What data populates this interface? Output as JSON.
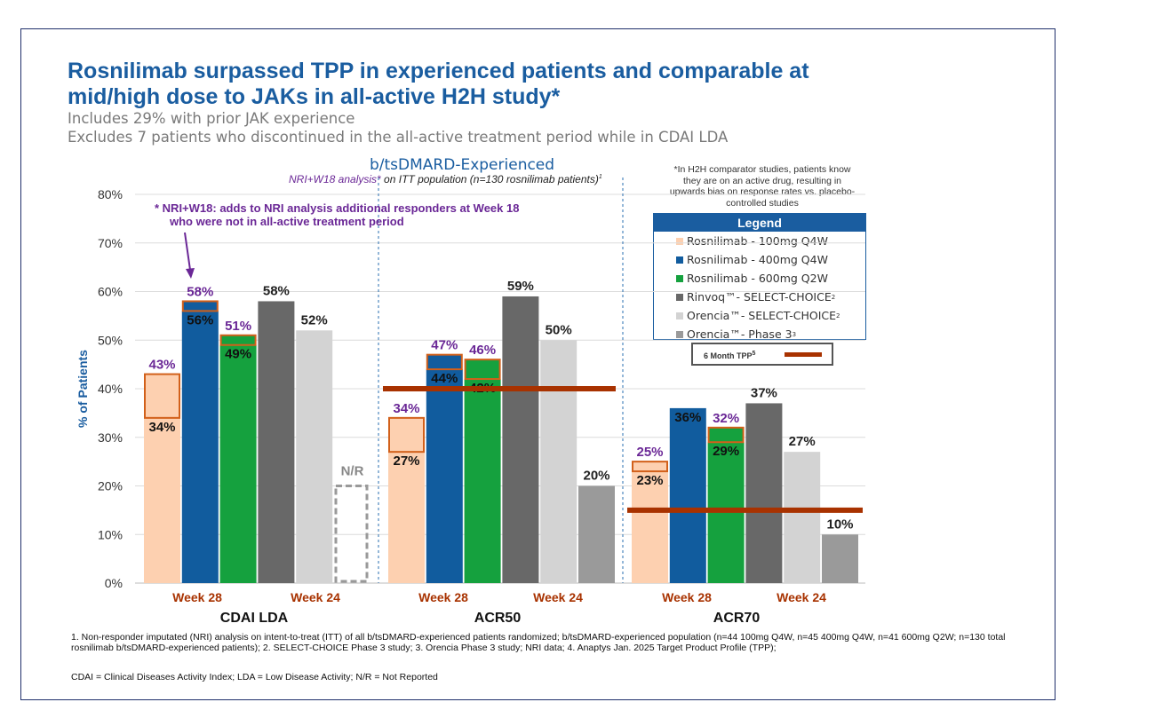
{
  "title": "Rosnilimab surpassed TPP in experienced patients and comparable at mid/high dose to JAKs in all-active H2H study*",
  "subtitle_1": "Includes 29% with prior JAK experience",
  "subtitle_2": "Excludes 7 patients who discontinued in the all-active treatment period while in CDAI LDA",
  "bias_note": "*In H2H comparator studies, patients know they are on an active drug, resulting in upwards bias on response rates vs. placebo-controlled studies",
  "legend": {
    "title": "Legend",
    "items": [
      {
        "label": "Rosnilimab - 100mg Q4W",
        "sup": "",
        "color": "#fdd0b0"
      },
      {
        "label": "Rosnilimab - 400mg Q4W",
        "sup": "",
        "color": "#115c9e"
      },
      {
        "label": "Rosnilimab - 600mg Q2W",
        "sup": "",
        "color": "#15a13e"
      },
      {
        "label": "Rinvoq™- SELECT-CHOICE",
        "sup": "2",
        "color": "#686868"
      },
      {
        "label": "Orencia™- SELECT-CHOICE",
        "sup": "2",
        "color": "#d3d3d3"
      },
      {
        "label": "Orencia™- Phase 3",
        "sup": "3",
        "color": "#9a9a9a"
      }
    ],
    "tpp_label": "6 Month TPP",
    "tpp_sup": "5"
  },
  "chart_data": {
    "type": "bar",
    "title": "b/tsDMARD-Experienced",
    "subtitle_prefix": "NRI+W18 analysis*",
    "subtitle_rest": " on ITT population (n=130 rosnilimab patients)",
    "subtitle_sup": "1",
    "ylabel": "% of Patients",
    "ylim": [
      0,
      80
    ],
    "yticks": [
      "0%",
      "10%",
      "20%",
      "30%",
      "40%",
      "50%",
      "60%",
      "70%",
      "80%"
    ],
    "grid": true,
    "annotation": {
      "line1": "*  NRI+W18: adds to NRI analysis additional responders at Week 18",
      "line2": "who were not in all-active treatment period"
    },
    "colors": {
      "r100": "#fdd0b0",
      "r400": "#115c9e",
      "r600": "#15a13e",
      "rinvoq": "#686868",
      "orencia_sc": "#d3d3d3",
      "orencia_p3": "#9a9a9a",
      "nri_outline": "#d2601a",
      "tpp": "#a83200",
      "purple": "#6a2796",
      "week": "#a83200"
    },
    "groups": [
      {
        "name": "CDAI LDA",
        "week_labels": [
          "Week 28",
          "Week 24"
        ],
        "tpp": 40,
        "rosnilimab": [
          {
            "dose": "100mg Q4W",
            "nri": 34,
            "nri_w18": 43,
            "nri_label": "34%",
            "w18_label": "43%"
          },
          {
            "dose": "400mg Q4W",
            "nri": 56,
            "nri_w18": 58,
            "nri_label": "56%",
            "w18_label": "58%"
          },
          {
            "dose": "600mg Q2W",
            "nri": 49,
            "nri_w18": 51,
            "nri_label": "49%",
            "w18_label": "51%"
          }
        ],
        "comparators": [
          {
            "name": "Rinvoq SELECT-CHOICE",
            "value": 58,
            "label": "58%"
          },
          {
            "name": "Orencia SELECT-CHOICE",
            "value": 52,
            "label": "52%"
          },
          {
            "name": "Orencia Phase 3",
            "value": null,
            "label": "N/R"
          }
        ]
      },
      {
        "name": "ACR50",
        "week_labels": [
          "Week 28",
          "Week 24"
        ],
        "tpp": 40,
        "rosnilimab": [
          {
            "dose": "100mg Q4W",
            "nri": 27,
            "nri_w18": 34,
            "nri_label": "27%",
            "w18_label": "34%"
          },
          {
            "dose": "400mg Q4W",
            "nri": 44,
            "nri_w18": 47,
            "nri_label": "44%",
            "w18_label": "47%"
          },
          {
            "dose": "600mg Q2W",
            "nri": 42,
            "nri_w18": 46,
            "nri_label": "42%",
            "w18_label": "46%"
          }
        ],
        "comparators": [
          {
            "name": "Rinvoq SELECT-CHOICE",
            "value": 59,
            "label": "59%"
          },
          {
            "name": "Orencia SELECT-CHOICE",
            "value": 50,
            "label": "50%"
          },
          {
            "name": "Orencia Phase 3",
            "value": 20,
            "label": "20%"
          }
        ]
      },
      {
        "name": "ACR70",
        "week_labels": [
          "Week 28",
          "Week 24"
        ],
        "tpp": 15,
        "rosnilimab": [
          {
            "dose": "100mg Q4W",
            "nri": 23,
            "nri_w18": 25,
            "nri_label": "23%",
            "w18_label": "25%"
          },
          {
            "dose": "400mg Q4W",
            "nri": 36,
            "nri_w18": 36,
            "nri_label": "36%",
            "w18_label": ""
          },
          {
            "dose": "600mg Q2W",
            "nri": 29,
            "nri_w18": 32,
            "nri_label": "29%",
            "w18_label": "32%"
          }
        ],
        "comparators": [
          {
            "name": "Rinvoq SELECT-CHOICE",
            "value": 37,
            "label": "37%"
          },
          {
            "name": "Orencia SELECT-CHOICE",
            "value": 27,
            "label": "27%"
          },
          {
            "name": "Orencia Phase 3",
            "value": 10,
            "label": "10%"
          }
        ]
      }
    ]
  },
  "footnote": "1. Non-responder imputated (NRI) analysis on intent-to-treat (ITT) of all b/tsDMARD-experienced patients randomized; b/tsDMARD-experienced population (n=44 100mg Q4W, n=45 400mg Q4W, n=41 600mg Q2W; n=130 total rosnilimab b/tsDMARD-experienced patients); 2. SELECT-CHOICE Phase 3 study; 3. Orencia Phase 3 study; NRI data; 4. Anaptys Jan. 2025 Target Product Profile (TPP);",
  "footnote_2": "CDAI = Clinical Diseases Activity Index; LDA = Low Disease Activity; N/R = Not Reported"
}
